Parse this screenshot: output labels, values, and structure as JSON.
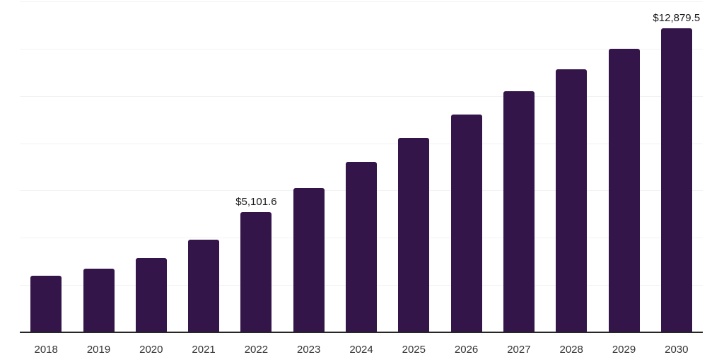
{
  "chart_data": {
    "type": "bar",
    "title": "",
    "xlabel": "",
    "ylabel": "",
    "categories": [
      "2018",
      "2019",
      "2020",
      "2021",
      "2022",
      "2023",
      "2024",
      "2025",
      "2026",
      "2027",
      "2028",
      "2029",
      "2030"
    ],
    "values": [
      2400,
      2690,
      3150,
      3930,
      5101.6,
      6090,
      7210,
      8220,
      9230,
      10190,
      11140,
      12000,
      12879.5
    ],
    "data_labels": [
      {
        "category": "2022",
        "index": 4,
        "text": "$5,101.6"
      },
      {
        "category": "2030",
        "index": 12,
        "text": "$12,879.5"
      }
    ],
    "ylim": [
      0,
      14000
    ],
    "grid_interval": 2000,
    "grid": "horizontal-only",
    "y_axis_ticks_visible": false,
    "legend": "none",
    "bar_color": "#331549",
    "axis_line_color": "#262626",
    "grid_color": "#f2f2f2",
    "tick_label_color": "#333333",
    "data_label_color": "#1a1a1a"
  }
}
